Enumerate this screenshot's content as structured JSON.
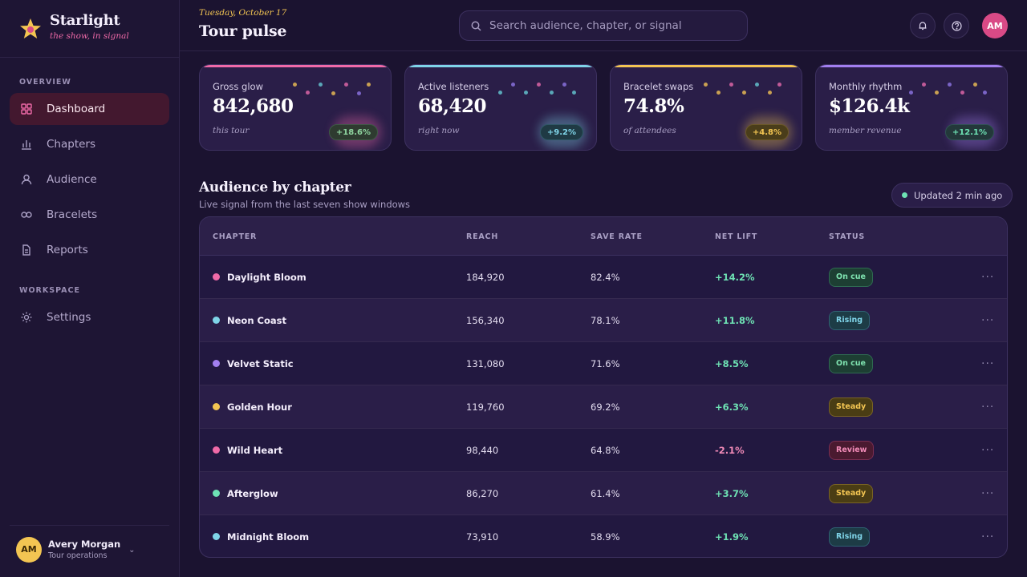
{
  "brand": {
    "name": "Starlight",
    "tagline": "the show, in signal"
  },
  "sidebar": {
    "overview_label": "OVERVIEW",
    "workspace_label": "WORKSPACE",
    "items": [
      {
        "label": "Dashboard",
        "icon": "grid-icon",
        "active": true
      },
      {
        "label": "Chapters",
        "icon": "bar-chart-icon"
      },
      {
        "label": "Audience",
        "icon": "user-icon"
      },
      {
        "label": "Bracelets",
        "icon": "link-icon"
      },
      {
        "label": "Reports",
        "icon": "document-icon"
      }
    ],
    "settings": {
      "label": "Settings",
      "icon": "sun-icon"
    }
  },
  "user": {
    "initials": "AM",
    "name": "Avery Morgan",
    "role": "Tour operations"
  },
  "header": {
    "date": "Tuesday, October 17",
    "title": "Tour pulse",
    "search_placeholder": "Search audience, chapter, or signal",
    "avatar_initials": "AM"
  },
  "kpis": [
    {
      "label": "Gross glow",
      "value": "842,680",
      "sub": "this tour",
      "badge": "+18.6%",
      "accent": "#f06aa8"
    },
    {
      "label": "Active listeners",
      "value": "68,420",
      "sub": "right now",
      "badge": "+9.2%",
      "accent": "#7fd4e8"
    },
    {
      "label": "Bracelet swaps",
      "value": "74.8%",
      "sub": "of attendees",
      "badge": "+4.8%",
      "accent": "#f3c552"
    },
    {
      "label": "Monthly rhythm",
      "value": "$126.4k",
      "sub": "member revenue",
      "badge": "+12.1%",
      "accent": "#a27ff0"
    }
  ],
  "section": {
    "title": "Audience by chapter",
    "subtitle": "Live signal from the last seven show windows",
    "updated": "Updated 2 min ago"
  },
  "table": {
    "columns": [
      "CHAPTER",
      "REACH",
      "SAVE RATE",
      "NET LIFT",
      "STATUS"
    ],
    "rows": [
      {
        "chapter": "Daylight Bloom",
        "reach": "184,920",
        "save_rate": "82.4%",
        "net_lift": "+14.2%",
        "status": "On cue",
        "dot": "#f06aa8"
      },
      {
        "chapter": "Neon Coast",
        "reach": "156,340",
        "save_rate": "78.1%",
        "net_lift": "+11.8%",
        "status": "Rising",
        "dot": "#7fd4e8"
      },
      {
        "chapter": "Velvet Static",
        "reach": "131,080",
        "save_rate": "71.6%",
        "net_lift": "+8.5%",
        "status": "On cue",
        "dot": "#a27ff0"
      },
      {
        "chapter": "Golden Hour",
        "reach": "119,760",
        "save_rate": "69.2%",
        "net_lift": "+6.3%",
        "status": "Steady",
        "dot": "#f3c552"
      },
      {
        "chapter": "Wild Heart",
        "reach": "98,440",
        "save_rate": "64.8%",
        "net_lift": "-2.1%",
        "status": "Review",
        "dot": "#f06aa8"
      },
      {
        "chapter": "Afterglow",
        "reach": "86,270",
        "save_rate": "61.4%",
        "net_lift": "+3.7%",
        "status": "Steady",
        "dot": "#6ee2b4"
      },
      {
        "chapter": "Midnight Bloom",
        "reach": "73,910",
        "save_rate": "58.9%",
        "net_lift": "+1.9%",
        "status": "Rising",
        "dot": "#7fd4e8"
      }
    ]
  },
  "colors": {
    "positive": "#6ee2b4",
    "negative": "#f28bb8"
  }
}
